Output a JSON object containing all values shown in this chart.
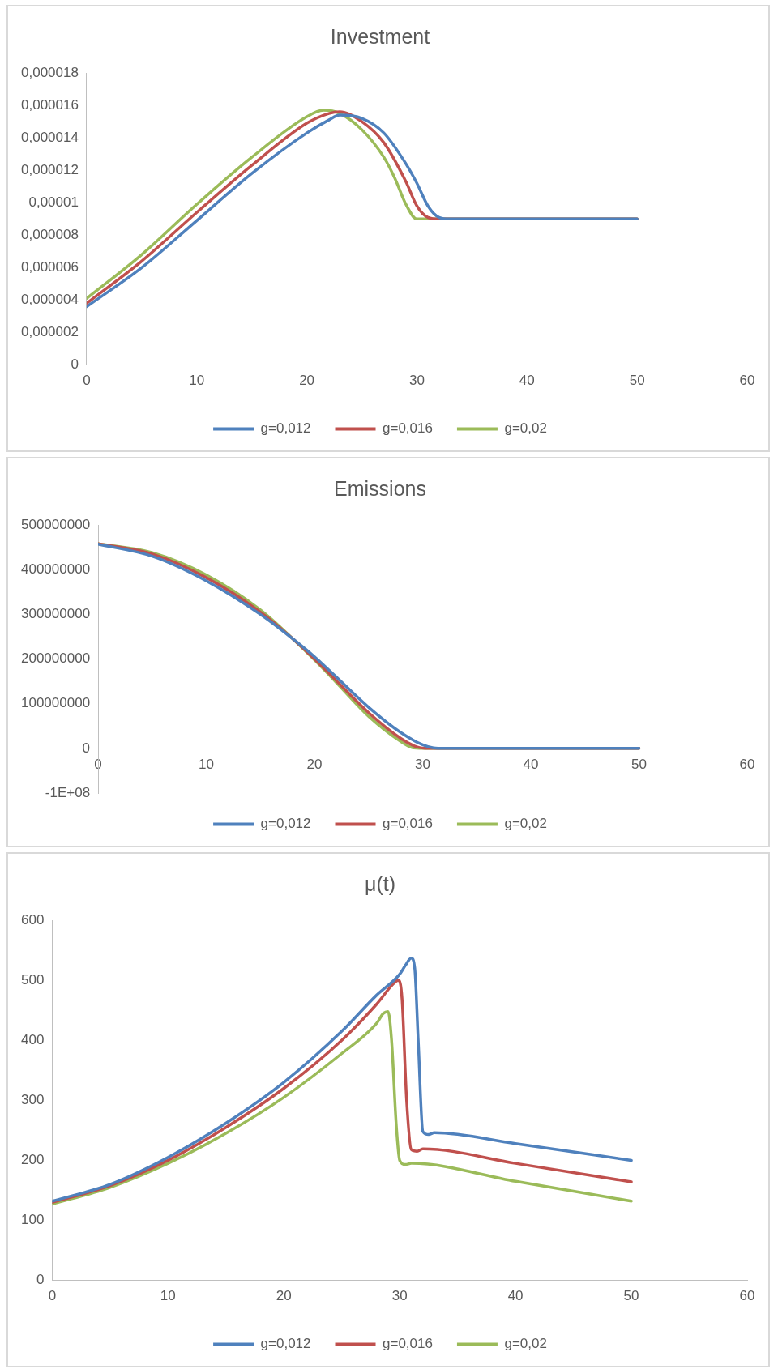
{
  "chart_data": [
    {
      "type": "line",
      "title": "Investment",
      "legend": "bottom",
      "grid": false,
      "xlim": [
        0,
        60
      ],
      "xticks": [
        0,
        10,
        20,
        30,
        40,
        50,
        60
      ],
      "ylim": [
        0,
        1.8e-05
      ],
      "yticks": [
        0,
        {
          "value": 2e-06,
          "label": "0,000002"
        },
        {
          "value": 4e-06,
          "label": "0,000004"
        },
        {
          "value": 6e-06,
          "label": "0,000006"
        },
        {
          "value": 8e-06,
          "label": "0,000008"
        },
        {
          "value": 1e-05,
          "label": "0,00001"
        },
        {
          "value": 1.2e-05,
          "label": "0,000012"
        },
        {
          "value": 1.4e-05,
          "label": "0,000014"
        },
        {
          "value": 1.6e-05,
          "label": "0,000016"
        },
        {
          "value": 1.8e-05,
          "label": "0,000018"
        }
      ],
      "series": [
        {
          "name": "g=0,012",
          "color": "#4f81bd",
          "x": [
            0,
            5,
            10,
            15,
            20,
            22,
            23,
            25,
            27,
            29,
            30,
            31,
            32,
            33,
            50
          ],
          "values": [
            3.6e-06,
            6e-06,
            8.9e-06,
            1.18e-05,
            1.43e-05,
            1.51e-05,
            1.54e-05,
            1.52e-05,
            1.43e-05,
            1.24e-05,
            1.12e-05,
            9.8e-06,
            9.1e-06,
            9e-06,
            9e-06
          ]
        },
        {
          "name": "g=0,016",
          "color": "#c0504d",
          "x": [
            0,
            5,
            10,
            15,
            20,
            22,
            23,
            25,
            27,
            29,
            30,
            31,
            32,
            50
          ],
          "values": [
            3.8e-06,
            6.4e-06,
            9.4e-06,
            1.23e-05,
            1.49e-05,
            1.55e-05,
            1.56e-05,
            1.5e-05,
            1.37e-05,
            1.13e-05,
            9.8e-06,
            9.1e-06,
            9e-06,
            9e-06
          ]
        },
        {
          "name": "g=0,02",
          "color": "#9bbb59",
          "x": [
            0,
            5,
            10,
            15,
            20,
            21.5,
            23,
            25,
            27,
            28,
            29,
            30,
            31,
            50
          ],
          "values": [
            4.1e-06,
            6.8e-06,
            9.9e-06,
            1.28e-05,
            1.53e-05,
            1.57e-05,
            1.55e-05,
            1.45e-05,
            1.28e-05,
            1.15e-05,
            9.9e-06,
            9e-06,
            9e-06,
            9e-06
          ]
        }
      ]
    },
    {
      "type": "line",
      "title": "Emissions",
      "legend": "bottom",
      "grid": false,
      "xlim": [
        0,
        60
      ],
      "xticks": [
        0,
        10,
        20,
        30,
        40,
        50,
        60
      ],
      "ylim": [
        -100000000,
        500000000
      ],
      "yticks": [
        {
          "value": -100000000,
          "label": "-1E+08"
        },
        0,
        100000000,
        200000000,
        300000000,
        400000000,
        500000000
      ],
      "series": [
        {
          "name": "g=0,012",
          "color": "#4f81bd",
          "x": [
            0,
            5,
            10,
            15,
            18,
            20,
            22,
            25,
            28,
            30,
            31,
            32,
            50
          ],
          "values": [
            457000000,
            430000000,
            375000000,
            300000000,
            245000000,
            205000000,
            160000000,
            92000000,
            35000000,
            8000000,
            1000000,
            0,
            0
          ]
        },
        {
          "name": "g=0,016",
          "color": "#c0504d",
          "x": [
            0,
            5,
            10,
            15,
            18,
            20,
            22,
            25,
            28,
            29.5,
            30.5,
            50
          ],
          "values": [
            458000000,
            435000000,
            382000000,
            305000000,
            245000000,
            200000000,
            152000000,
            80000000,
            22000000,
            3000000,
            0,
            0
          ]
        },
        {
          "name": "g=0,02",
          "color": "#9bbb59",
          "x": [
            0,
            5,
            10,
            15,
            18,
            20,
            22,
            25,
            28,
            29,
            30,
            50
          ],
          "values": [
            458000000,
            438000000,
            388000000,
            310000000,
            245000000,
            198000000,
            148000000,
            72000000,
            15000000,
            2000000,
            0,
            0
          ]
        }
      ]
    },
    {
      "type": "line",
      "title": "μ(t)",
      "legend": "bottom",
      "grid": false,
      "xlim": [
        0,
        60
      ],
      "xticks": [
        0,
        10,
        20,
        30,
        40,
        50,
        60
      ],
      "ylim": [
        0,
        600
      ],
      "yticks": [
        0,
        100,
        200,
        300,
        400,
        500,
        600
      ],
      "series": [
        {
          "name": "g=0,012",
          "color": "#4f81bd",
          "x": [
            0,
            5,
            10,
            15,
            20,
            25,
            28,
            30,
            30.5,
            31,
            31.3,
            31.6,
            32,
            32.5,
            33,
            40,
            50
          ],
          "values": [
            132,
            160,
            205,
            262,
            330,
            415,
            475,
            510,
            525,
            537,
            520,
            400,
            248,
            243,
            246,
            228,
            200
          ]
        },
        {
          "name": "g=0,016",
          "color": "#c0504d",
          "x": [
            0,
            5,
            10,
            15,
            20,
            25,
            28,
            29.5,
            29.9,
            30.2,
            30.6,
            31,
            31.5,
            32,
            40,
            50
          ],
          "values": [
            130,
            158,
            200,
            255,
            320,
            400,
            460,
            495,
            500,
            470,
            300,
            218,
            215,
            219,
            195,
            164
          ]
        },
        {
          "name": "g=0,02",
          "color": "#9bbb59",
          "x": [
            0,
            5,
            10,
            15,
            20,
            25,
            28,
            28.6,
            29,
            29.3,
            29.7,
            30,
            30.5,
            31,
            40,
            50
          ],
          "values": [
            127,
            155,
            195,
            245,
            305,
            378,
            428,
            445,
            448,
            400,
            260,
            200,
            193,
            195,
            165,
            132
          ]
        }
      ]
    }
  ]
}
